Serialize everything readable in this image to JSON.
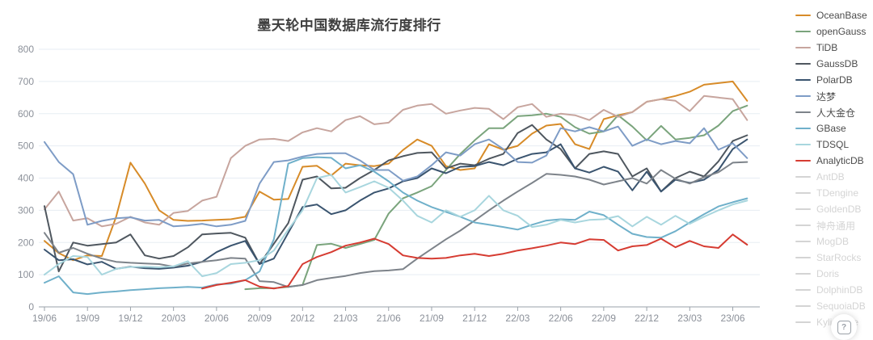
{
  "title": "墨天轮中国数据库流行度排行",
  "help_button": {
    "label": "?"
  },
  "axis_colors": {
    "grid": "#e7edf3",
    "axis_line": "#9aa2aa",
    "tick_label": "#8b9099"
  },
  "chart_data": {
    "type": "line",
    "title": "墨天轮中国数据库流行度排行",
    "xlabel": "",
    "ylabel": "",
    "ylim": [
      0,
      800
    ],
    "y_ticks": [
      0,
      100,
      200,
      300,
      400,
      500,
      600,
      700,
      800
    ],
    "grid": true,
    "legend_position": "right",
    "x_axis_ticks": [
      "19/06",
      "19/09",
      "19/12",
      "20/03",
      "20/06",
      "20/09",
      "20/12",
      "21/03",
      "21/06",
      "21/09",
      "21/12",
      "22/03",
      "22/06",
      "22/09",
      "22/12",
      "23/03",
      "23/06"
    ],
    "x": [
      "19/06",
      "19/07",
      "19/08",
      "19/09",
      "19/10",
      "19/11",
      "19/12",
      "20/01",
      "20/02",
      "20/03",
      "20/04",
      "20/05",
      "20/06",
      "20/07",
      "20/08",
      "20/09",
      "20/10",
      "20/11",
      "20/12",
      "21/01",
      "21/02",
      "21/03",
      "21/04",
      "21/05",
      "21/06",
      "21/07",
      "21/08",
      "21/09",
      "21/10",
      "21/11",
      "21/12",
      "22/01",
      "22/02",
      "22/03",
      "22/04",
      "22/05",
      "22/06",
      "22/07",
      "22/08",
      "22/09",
      "22/10",
      "22/11",
      "22/12",
      "23/01",
      "23/02",
      "23/03",
      "23/04",
      "23/05",
      "23/06",
      "23/07"
    ],
    "series": [
      {
        "name": "OceanBase",
        "color": "#d78b28",
        "values": [
          205,
          167,
          145,
          160,
          158,
          280,
          448,
          383,
          300,
          270,
          267,
          268,
          270,
          272,
          280,
          358,
          333,
          335,
          435,
          438,
          408,
          445,
          440,
          437,
          445,
          487,
          520,
          500,
          437,
          425,
          430,
          505,
          488,
          500,
          538,
          563,
          568,
          505,
          490,
          583,
          595,
          605,
          637,
          645,
          655,
          668,
          690,
          695,
          700,
          640
        ]
      },
      {
        "name": "openGauss",
        "color": "#7aa47c",
        "values": [
          null,
          null,
          null,
          null,
          null,
          null,
          null,
          null,
          null,
          null,
          null,
          null,
          null,
          null,
          55,
          58,
          58,
          62,
          68,
          192,
          196,
          183,
          195,
          208,
          290,
          337,
          355,
          375,
          425,
          475,
          517,
          555,
          555,
          592,
          595,
          600,
          590,
          558,
          538,
          545,
          595,
          560,
          517,
          562,
          520,
          525,
          533,
          563,
          608,
          625
        ]
      },
      {
        "name": "TiDB",
        "color": "#c7a59e",
        "values": [
          303,
          358,
          268,
          275,
          250,
          258,
          280,
          262,
          255,
          292,
          298,
          330,
          342,
          462,
          500,
          520,
          522,
          515,
          542,
          555,
          545,
          580,
          592,
          567,
          572,
          612,
          625,
          630,
          600,
          610,
          618,
          615,
          583,
          620,
          630,
          590,
          600,
          595,
          580,
          612,
          590,
          605,
          637,
          645,
          640,
          608,
          655,
          650,
          645,
          580
        ]
      },
      {
        "name": "GaussDB",
        "color": "#4f575f",
        "values": [
          313,
          110,
          200,
          190,
          195,
          200,
          225,
          160,
          150,
          158,
          185,
          225,
          228,
          230,
          215,
          133,
          196,
          260,
          395,
          405,
          368,
          370,
          400,
          425,
          455,
          468,
          478,
          480,
          430,
          445,
          440,
          460,
          475,
          540,
          565,
          520,
          490,
          430,
          475,
          483,
          475,
          405,
          430,
          358,
          400,
          420,
          405,
          452,
          515,
          533
        ]
      },
      {
        "name": "PolarDB",
        "color": "#3a546f",
        "values": [
          178,
          145,
          148,
          132,
          140,
          118,
          125,
          120,
          118,
          122,
          128,
          140,
          170,
          190,
          205,
          133,
          150,
          230,
          310,
          318,
          288,
          300,
          330,
          355,
          368,
          390,
          400,
          430,
          415,
          435,
          437,
          450,
          440,
          460,
          475,
          480,
          505,
          430,
          417,
          435,
          420,
          362,
          420,
          358,
          395,
          385,
          395,
          425,
          490,
          520
        ]
      },
      {
        "name": "达梦",
        "color": "#7e9cc6",
        "values": [
          512,
          450,
          412,
          255,
          267,
          275,
          278,
          268,
          270,
          250,
          253,
          258,
          250,
          255,
          267,
          383,
          450,
          455,
          467,
          475,
          477,
          477,
          455,
          425,
          425,
          392,
          405,
          440,
          480,
          470,
          505,
          520,
          490,
          450,
          448,
          470,
          555,
          545,
          558,
          545,
          560,
          500,
          520,
          505,
          515,
          508,
          555,
          488,
          508,
          462
        ]
      },
      {
        "name": "人大金仓",
        "color": "#7d838a",
        "values": [
          230,
          168,
          183,
          165,
          150,
          140,
          137,
          135,
          133,
          125,
          135,
          140,
          145,
          152,
          150,
          80,
          77,
          62,
          68,
          83,
          90,
          96,
          105,
          111,
          113,
          117,
          150,
          180,
          210,
          237,
          268,
          300,
          330,
          358,
          385,
          413,
          410,
          405,
          395,
          380,
          390,
          400,
          383,
          425,
          398,
          383,
          403,
          418,
          448,
          450
        ]
      },
      {
        "name": "GBase",
        "color": "#6fb0ca",
        "values": [
          75,
          95,
          45,
          40,
          45,
          48,
          52,
          55,
          58,
          60,
          62,
          60,
          70,
          72,
          83,
          110,
          210,
          445,
          462,
          465,
          463,
          430,
          440,
          420,
          390,
          355,
          330,
          310,
          295,
          280,
          262,
          255,
          248,
          240,
          255,
          268,
          272,
          270,
          296,
          285,
          255,
          227,
          217,
          215,
          235,
          262,
          288,
          312,
          325,
          337
        ]
      },
      {
        "name": "TDSQL",
        "color": "#a8d6de",
        "values": [
          100,
          133,
          158,
          155,
          100,
          118,
          124,
          125,
          123,
          126,
          142,
          95,
          105,
          133,
          137,
          145,
          175,
          240,
          300,
          400,
          410,
          355,
          372,
          390,
          370,
          330,
          283,
          262,
          300,
          280,
          300,
          345,
          300,
          283,
          248,
          255,
          270,
          262,
          270,
          272,
          282,
          250,
          280,
          255,
          283,
          258,
          280,
          300,
          318,
          330
        ]
      },
      {
        "name": "AnalyticDB",
        "color": "#d63c32",
        "values": [
          null,
          null,
          null,
          null,
          null,
          null,
          null,
          null,
          null,
          null,
          null,
          57,
          68,
          75,
          83,
          63,
          57,
          65,
          133,
          155,
          170,
          190,
          200,
          212,
          195,
          160,
          152,
          150,
          152,
          160,
          165,
          158,
          165,
          175,
          182,
          190,
          200,
          195,
          210,
          208,
          175,
          188,
          192,
          212,
          185,
          205,
          188,
          183,
          225,
          193
        ]
      }
    ],
    "disabled_series": [
      {
        "name": "AntDB",
        "color": "#d4d4d4"
      },
      {
        "name": "TDengine",
        "color": "#d4d4d4"
      },
      {
        "name": "GoldenDB",
        "color": "#d4d4d4"
      },
      {
        "name": "神舟通用",
        "color": "#d4d4d4"
      },
      {
        "name": "MogDB",
        "color": "#d4d4d4"
      },
      {
        "name": "StarRocks",
        "color": "#d4d4d4"
      },
      {
        "name": "Doris",
        "color": "#d4d4d4"
      },
      {
        "name": "DolphinDB",
        "color": "#d4d4d4"
      },
      {
        "name": "SequoiaDB",
        "color": "#d4d4d4"
      },
      {
        "name": "Kyligence",
        "color": "#d4d4d4"
      }
    ]
  }
}
